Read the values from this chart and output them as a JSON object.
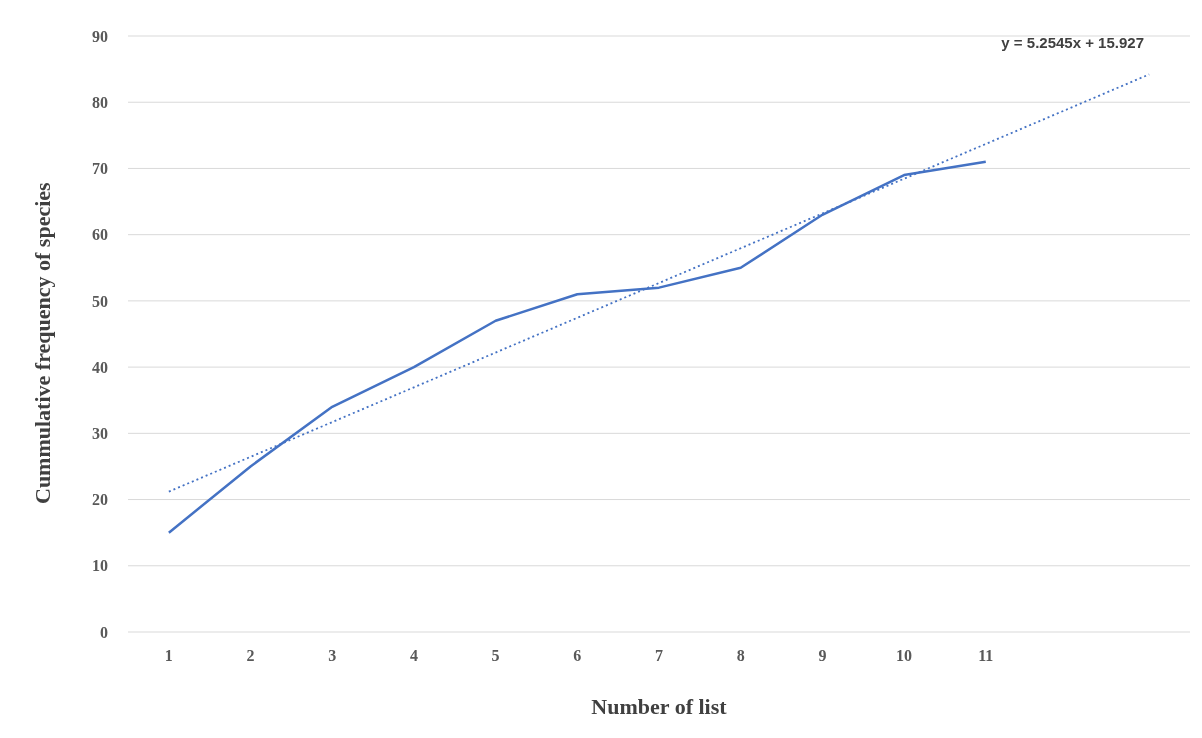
{
  "chart_data": {
    "type": "line",
    "xlabel": "Number of list",
    "ylabel": "Cummulative frequency of species",
    "x": [
      1,
      2,
      3,
      4,
      5,
      6,
      7,
      8,
      9,
      10,
      11
    ],
    "series": [
      {
        "color": "#4472c4",
        "values": [
          15,
          25,
          34,
          40,
          47,
          51,
          52,
          55,
          63,
          69,
          71
        ],
        "line_style": "solid"
      },
      {
        "type": "line",
        "color": "#4472c4",
        "x": [
          1,
          13
        ],
        "values": [
          21.2,
          84.2
        ],
        "line_style": "dotted"
      }
    ],
    "xlim": [
      0.5,
      13.5
    ],
    "xticks": [
      1,
      2,
      3,
      4,
      5,
      6,
      7,
      8,
      9,
      10,
      11
    ],
    "ylim": [
      0,
      90
    ],
    "yticks": [
      0,
      10,
      20,
      30,
      40,
      50,
      60,
      70,
      80,
      90
    ],
    "grid": "y",
    "marker": "none",
    "annotations": [
      "y = 5.2545x + 15.927"
    ]
  }
}
